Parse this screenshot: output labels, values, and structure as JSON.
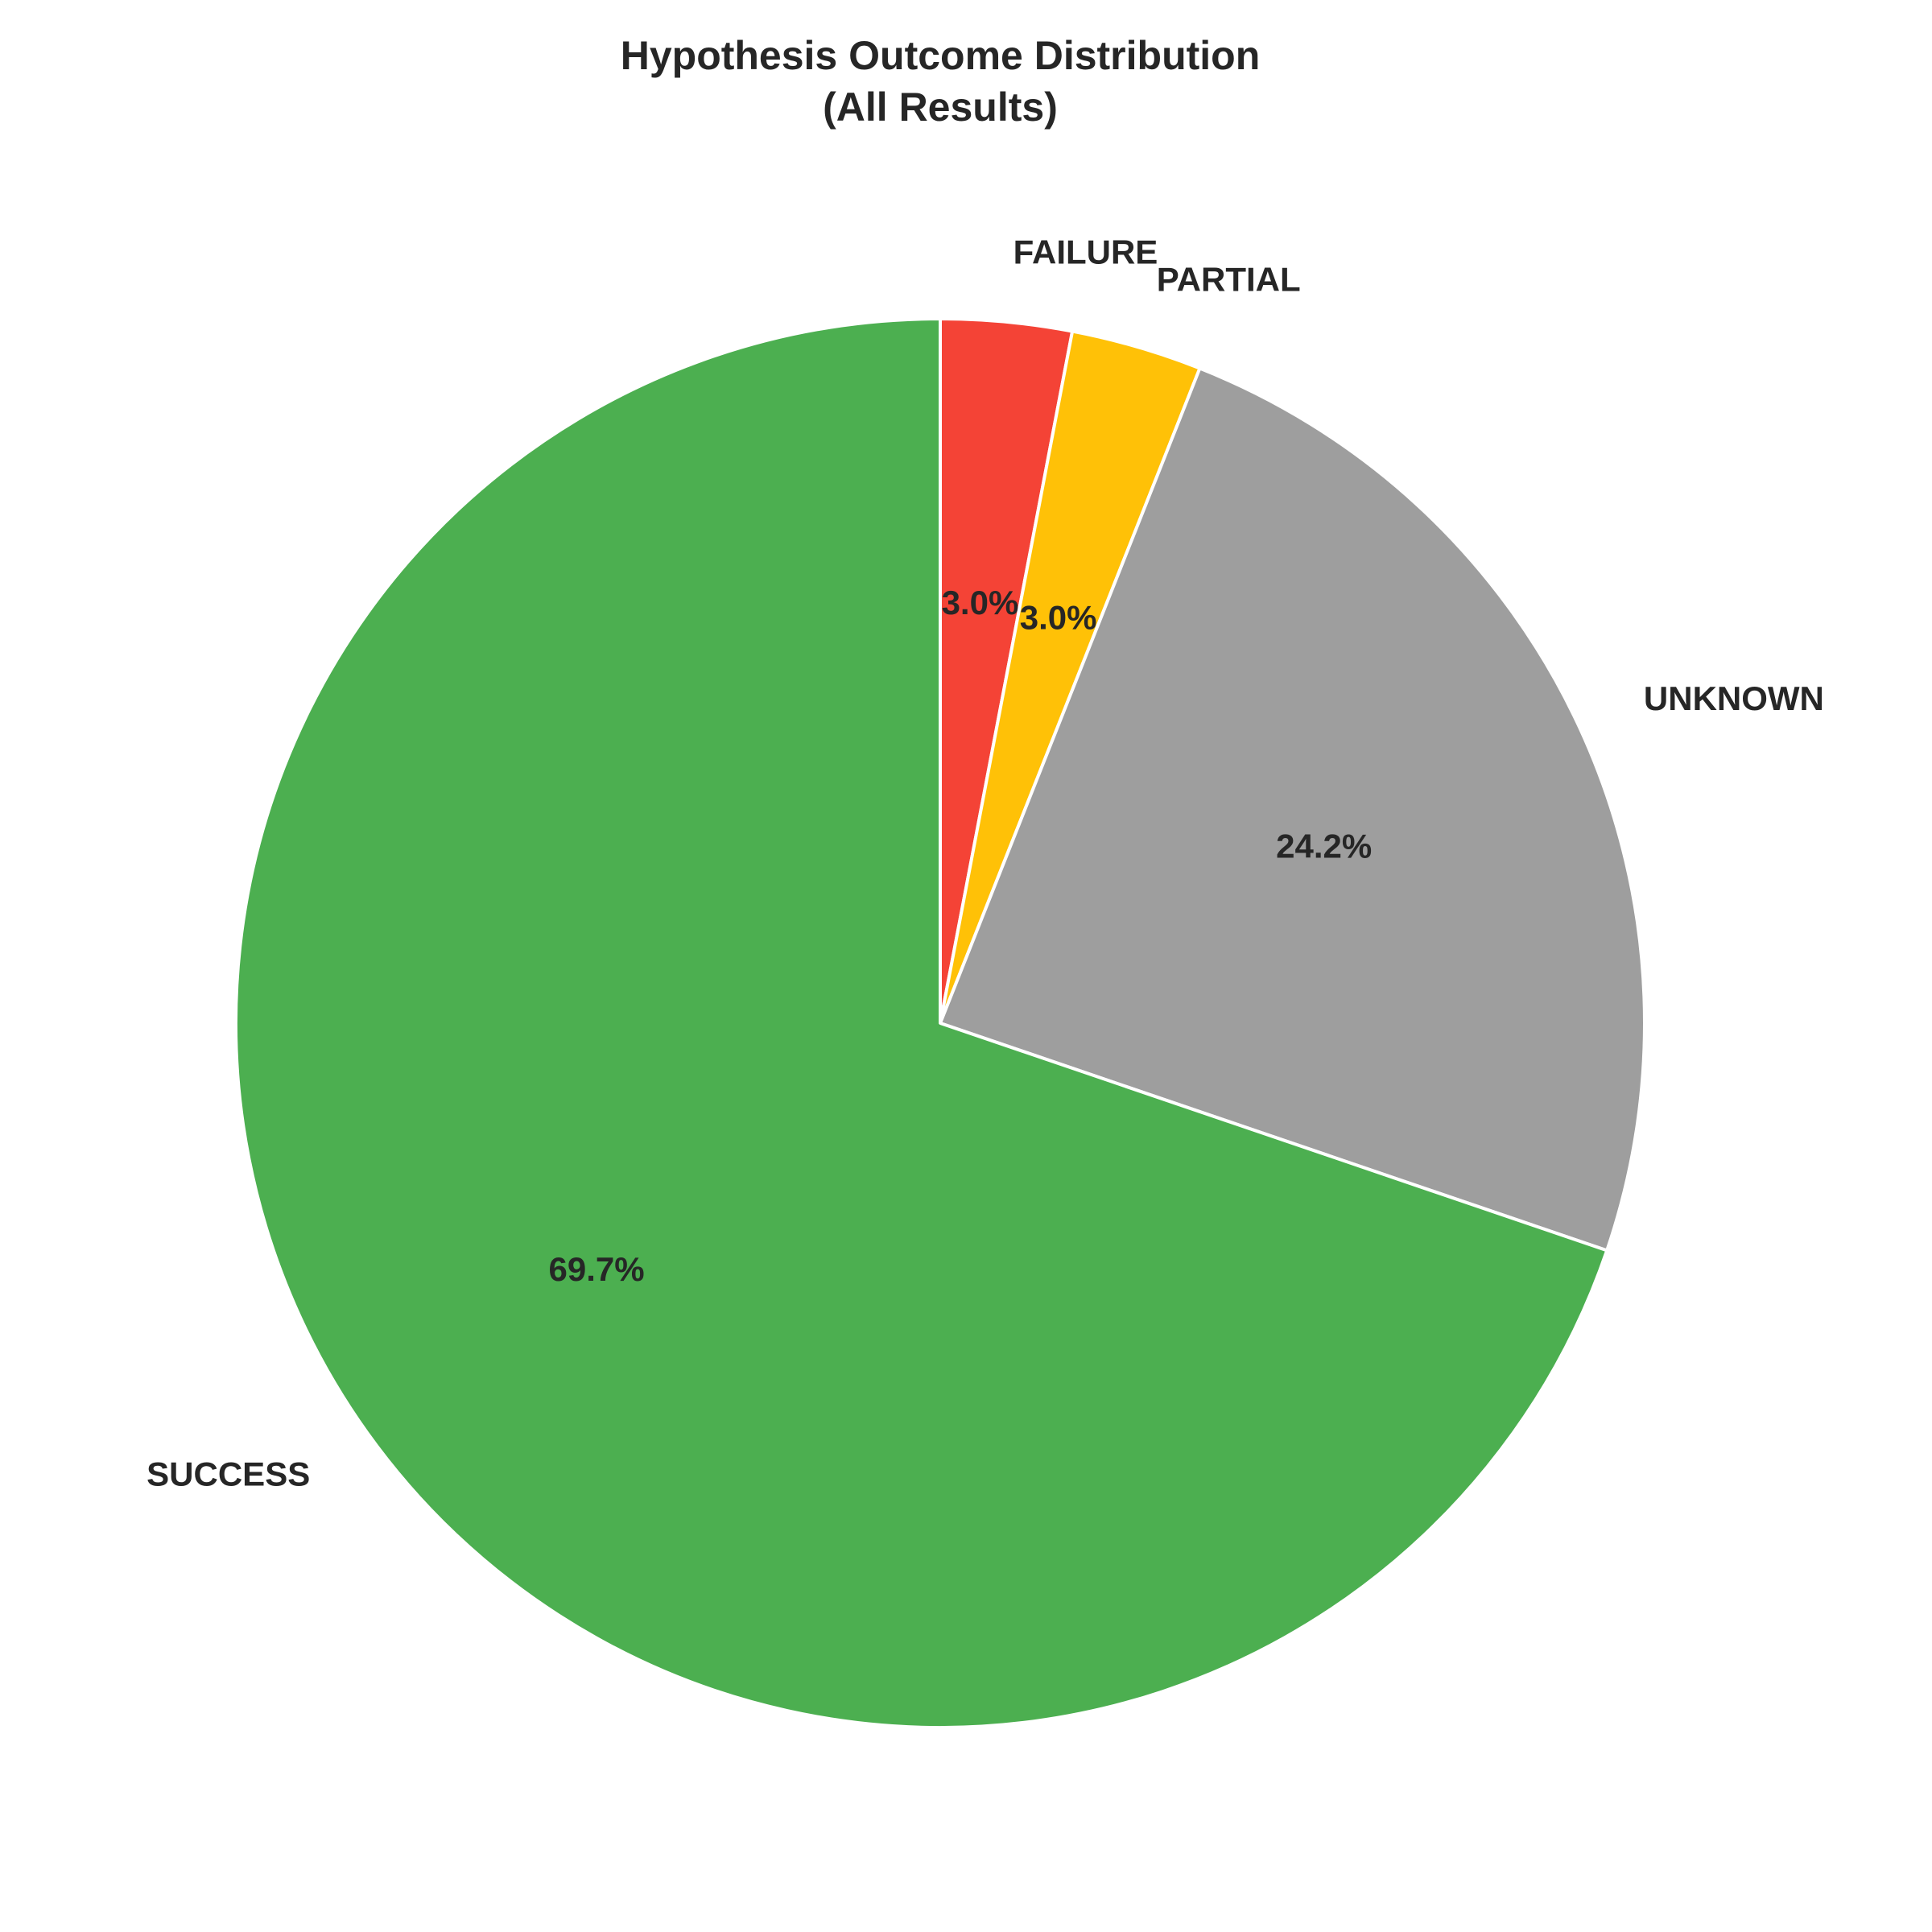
{
  "chart_data": {
    "type": "pie",
    "title": [
      "Hypothesis Outcome Distribution",
      "(All Results)"
    ],
    "start_angle_deg": 90,
    "direction": "clockwise",
    "slices": [
      {
        "label": "FAILURE",
        "value": 3.0,
        "pct_label": "3.0%",
        "color": "#F44336"
      },
      {
        "label": "PARTIAL",
        "value": 3.0,
        "pct_label": "3.0%",
        "color": "#FFC107"
      },
      {
        "label": "UNKNOWN",
        "value": 24.2,
        "pct_label": "24.2%",
        "color": "#9E9E9E"
      },
      {
        "label": "SUCCESS",
        "value": 69.7,
        "pct_label": "69.7%",
        "color": "#4CAF50"
      }
    ],
    "edge_color": "#FFFFFF"
  }
}
